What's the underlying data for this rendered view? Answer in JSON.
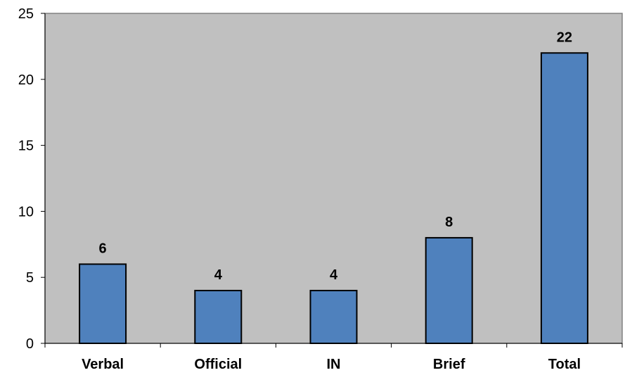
{
  "chart_data": {
    "type": "bar",
    "categories": [
      "Verbal",
      "Official",
      "IN",
      "Brief",
      "Total"
    ],
    "values": [
      6,
      4,
      4,
      8,
      22
    ],
    "data_labels": [
      "6",
      "4",
      "4",
      "8",
      "22"
    ],
    "title": "",
    "xlabel": "",
    "ylabel": "",
    "ylim": [
      0,
      25
    ],
    "yticks": [
      0,
      5,
      10,
      15,
      20,
      25
    ],
    "ytick_labels": [
      "0",
      "5",
      "10",
      "15",
      "20",
      "25"
    ],
    "grid": false,
    "legend": "none",
    "colors": {
      "bar_fill": "#4f81bd",
      "bar_stroke": "#000000",
      "plot_background": "#c0c0c0",
      "plot_border": "#808080"
    }
  }
}
